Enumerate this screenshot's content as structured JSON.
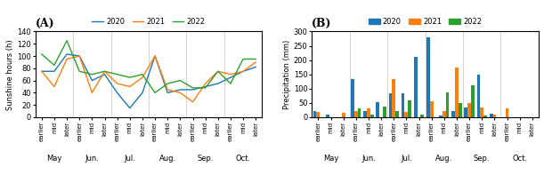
{
  "chart_data": [
    {
      "type": "line",
      "title": "(A)",
      "ylabel": "Sunshine hours (h)",
      "categories": [
        "earlier",
        "mid",
        "later",
        "earlier",
        "mid",
        "later",
        "earlier",
        "mid",
        "later",
        "earlier",
        "mid",
        "later",
        "earlier",
        "mid",
        "later",
        "earlier",
        "mid",
        "later"
      ],
      "annotations": [
        "May",
        "Jun.",
        "Jul.",
        "Aug.",
        "Sep.",
        "Oct."
      ],
      "series": [
        {
          "name": "2020",
          "values": [
            75,
            75,
            103,
            100,
            60,
            70,
            40,
            15,
            40,
            100,
            40,
            45,
            45,
            50,
            55,
            65,
            75,
            82
          ]
        },
        {
          "name": "2021",
          "values": [
            75,
            50,
            95,
            100,
            40,
            75,
            55,
            50,
            65,
            100,
            45,
            40,
            25,
            55,
            75,
            70,
            75,
            90
          ]
        },
        {
          "name": "2022",
          "values": [
            103,
            85,
            125,
            75,
            70,
            75,
            70,
            65,
            70,
            40,
            55,
            60,
            48,
            48,
            75,
            55,
            95,
            95
          ]
        }
      ],
      "ylim": [
        0,
        140
      ],
      "yticks": [
        0,
        20,
        40,
        60,
        80,
        100,
        120,
        140
      ],
      "grid": false,
      "legend": "upper center"
    },
    {
      "type": "bar",
      "title": "(B)",
      "ylabel": "Precipitation (mm)",
      "categories": [
        "earlier",
        "mid",
        "later",
        "earlier",
        "mid",
        "later",
        "earlier",
        "mid",
        "later",
        "earlier",
        "mid",
        "later",
        "earlier",
        "mid",
        "later",
        "earlier",
        "mid",
        "later"
      ],
      "annotations": [
        "May",
        "Jun.",
        "Jul.",
        "Aug.",
        "Sep.",
        "Oct."
      ],
      "series": [
        {
          "name": "2020",
          "values": [
            22,
            10,
            0,
            135,
            22,
            52,
            85,
            85,
            210,
            280,
            5,
            22,
            35,
            150,
            12,
            0,
            0,
            0
          ]
        },
        {
          "name": "2021",
          "values": [
            18,
            0,
            15,
            22,
            30,
            0,
            135,
            20,
            0,
            55,
            22,
            175,
            50,
            35,
            10,
            30,
            0,
            0
          ]
        },
        {
          "name": "2022",
          "values": [
            0,
            0,
            0,
            32,
            10,
            38,
            22,
            60,
            10,
            0,
            88,
            50,
            112,
            5,
            0,
            0,
            0,
            0
          ]
        }
      ],
      "ylim": [
        0,
        300
      ],
      "yticks": [
        0,
        50,
        100,
        150,
        200,
        250,
        300
      ],
      "grid": false,
      "legend": "upper center"
    }
  ]
}
